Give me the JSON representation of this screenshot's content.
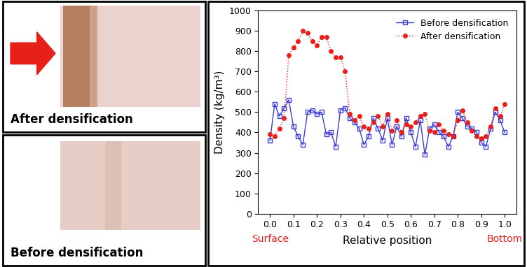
{
  "panels": [
    {
      "label": "After densification"
    },
    {
      "label": "Before densification"
    }
  ],
  "chart_data": {
    "type": "line",
    "xlabel": "Relative position",
    "ylabel": "Density (kg/m³)",
    "x": [
      0.0,
      0.02,
      0.04,
      0.06,
      0.08,
      0.1,
      0.12,
      0.14,
      0.16,
      0.18,
      0.2,
      0.22,
      0.24,
      0.26,
      0.28,
      0.3,
      0.32,
      0.34,
      0.36,
      0.38,
      0.4,
      0.42,
      0.44,
      0.46,
      0.48,
      0.5,
      0.52,
      0.54,
      0.56,
      0.58,
      0.6,
      0.62,
      0.64,
      0.66,
      0.68,
      0.7,
      0.72,
      0.74,
      0.76,
      0.78,
      0.8,
      0.82,
      0.84,
      0.86,
      0.88,
      0.9,
      0.92,
      0.94,
      0.96,
      0.98,
      1.0
    ],
    "series": [
      {
        "name": "Before densification",
        "color": "#3b3bd6",
        "marker": "square",
        "line_style": "solid",
        "values": [
          360,
          540,
          480,
          520,
          560,
          430,
          380,
          340,
          500,
          510,
          490,
          500,
          390,
          400,
          330,
          510,
          520,
          470,
          450,
          420,
          340,
          380,
          470,
          420,
          360,
          470,
          340,
          430,
          380,
          470,
          400,
          330,
          460,
          290,
          420,
          440,
          400,
          380,
          330,
          380,
          500,
          470,
          430,
          420,
          400,
          350,
          330,
          420,
          500,
          460,
          400
        ]
      },
      {
        "name": "After densification",
        "color": "#e8201a",
        "marker": "circle",
        "line_style": "dotted",
        "values": [
          390,
          380,
          420,
          470,
          780,
          820,
          850,
          900,
          890,
          850,
          830,
          870,
          870,
          800,
          770,
          770,
          700,
          490,
          460,
          480,
          430,
          420,
          450,
          480,
          430,
          490,
          410,
          460,
          400,
          440,
          430,
          450,
          480,
          490,
          410,
          400,
          440,
          410,
          390,
          380,
          460,
          510,
          450,
          410,
          380,
          370,
          380,
          430,
          520,
          480,
          540
        ]
      }
    ],
    "xlim": [
      -0.05,
      1.05
    ],
    "xticks": [
      0.0,
      0.1,
      0.2,
      0.3,
      0.4,
      0.5,
      0.6,
      0.7,
      0.8,
      0.9,
      1.0
    ],
    "ylim": [
      0,
      1000
    ],
    "yticks": [
      0,
      100,
      200,
      300,
      400,
      500,
      600,
      700,
      800,
      900,
      1000
    ],
    "legend": "upper right",
    "annotations": [
      {
        "text": "Surface",
        "x": 0.0
      },
      {
        "text": "Bottom",
        "x": 1.0
      }
    ]
  }
}
